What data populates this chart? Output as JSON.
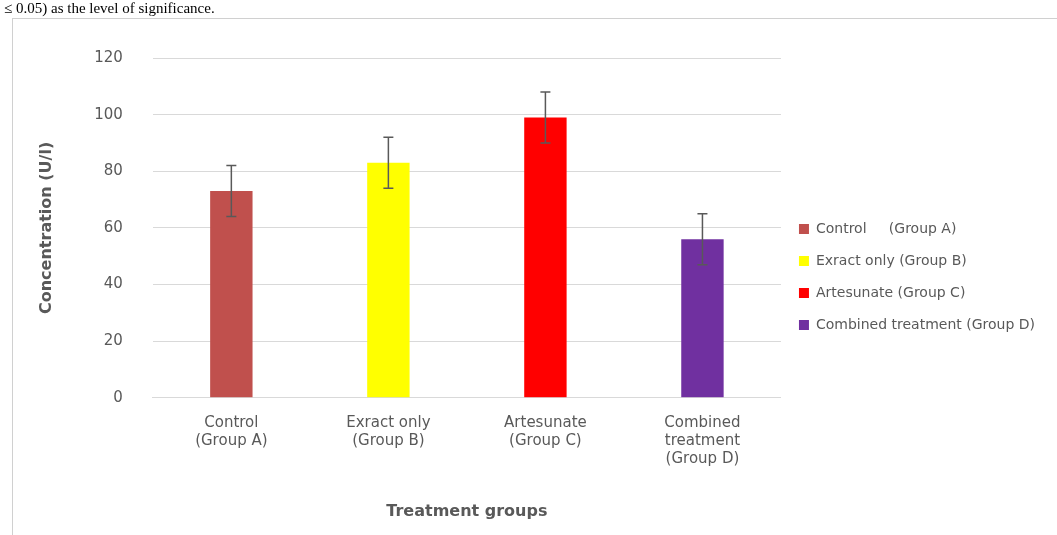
{
  "chart_data": {
    "type": "bar",
    "xlabel": "Treatment groups",
    "ylabel": "Concentration (U/l)",
    "categories": [
      "Control (Group A)",
      "Exract only (Group B)",
      "Artesunate (Group C)",
      "Combined treatment (Group D)"
    ],
    "series": [
      {
        "name": "Control     (Group A)",
        "color": "#c0504d",
        "values": [
          73,
          null,
          null,
          null
        ],
        "errors": [
          9,
          null,
          null,
          null
        ]
      },
      {
        "name": "Exract only (Group B)",
        "color": "#ffff00",
        "values": [
          null,
          83,
          null,
          null
        ],
        "errors": [
          null,
          9,
          null,
          null
        ]
      },
      {
        "name": "Artesunate (Group C)",
        "color": "#ff0000",
        "values": [
          null,
          null,
          99,
          null
        ],
        "errors": [
          null,
          null,
          9,
          null
        ]
      },
      {
        "name": "Combined treatment (Group D)",
        "color": "#7030a0",
        "values": [
          null,
          null,
          null,
          56
        ],
        "errors": [
          null,
          null,
          null,
          9
        ]
      }
    ],
    "ylim": [
      0,
      120
    ],
    "yticks": [
      0,
      20,
      40,
      60,
      80,
      100,
      120
    ],
    "grid": "y",
    "legend": "right",
    "annotations": [
      "≤ 0.05) as the level of significance."
    ]
  }
}
